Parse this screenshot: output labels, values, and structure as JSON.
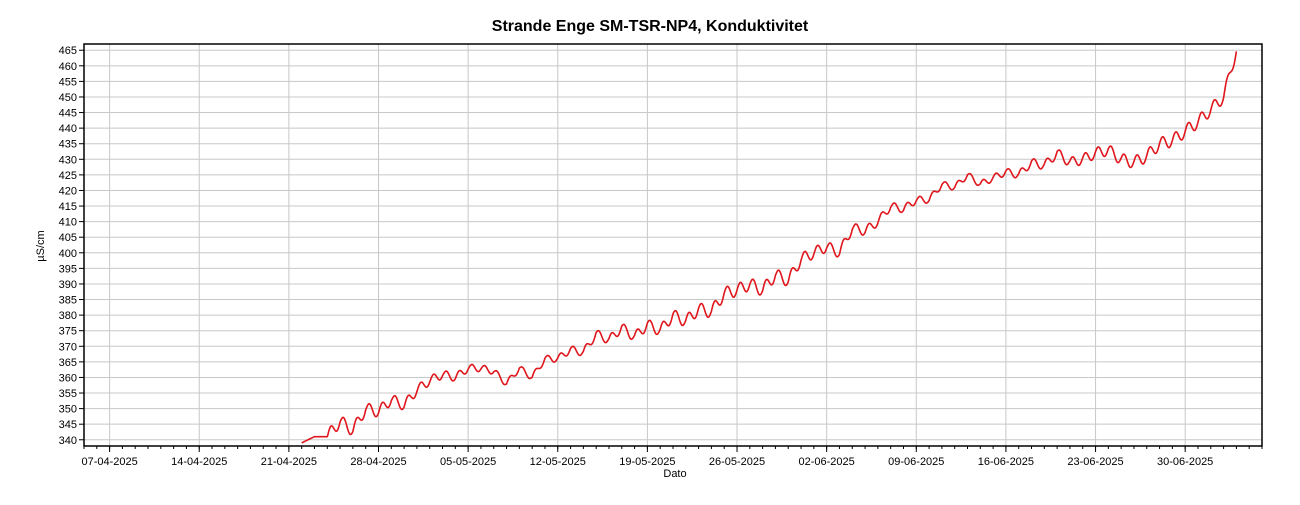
{
  "chart_data": {
    "type": "line",
    "title": "Strande Enge SM-TSR-NP4, Konduktivitet",
    "xlabel": "Dato",
    "ylabel": "µS/cm",
    "ylim": [
      338,
      467
    ],
    "yticks": [
      340,
      345,
      350,
      355,
      360,
      365,
      370,
      375,
      380,
      385,
      390,
      395,
      400,
      405,
      410,
      415,
      420,
      425,
      430,
      435,
      440,
      445,
      450,
      455,
      460,
      465
    ],
    "xlim": [
      "2025-04-05",
      "2025-07-06"
    ],
    "xticks": [
      "07-04-2025",
      "14-04-2025",
      "21-04-2025",
      "28-04-2025",
      "05-05-2025",
      "12-05-2025",
      "19-05-2025",
      "26-05-2025",
      "02-06-2025",
      "09-06-2025",
      "16-06-2025",
      "23-06-2025",
      "30-06-2025"
    ],
    "grid": true,
    "series": [
      {
        "color": "#e0161c",
        "points": [
          [
            "2025-04-22",
            339
          ],
          [
            "2025-04-23",
            341
          ],
          [
            "2025-04-24",
            341
          ],
          [
            "2025-04-25",
            346
          ],
          [
            "2025-04-26",
            343
          ],
          [
            "2025-04-27",
            350
          ],
          [
            "2025-04-28",
            349
          ],
          [
            "2025-04-29",
            353
          ],
          [
            "2025-04-30",
            351
          ],
          [
            "2025-05-01",
            356
          ],
          [
            "2025-05-02",
            359
          ],
          [
            "2025-05-03",
            361
          ],
          [
            "2025-05-04",
            360
          ],
          [
            "2025-05-05",
            363
          ],
          [
            "2025-05-06",
            363
          ],
          [
            "2025-05-07",
            362
          ],
          [
            "2025-05-08",
            358
          ],
          [
            "2025-05-09",
            363
          ],
          [
            "2025-05-10",
            360
          ],
          [
            "2025-05-11",
            366
          ],
          [
            "2025-05-12",
            366
          ],
          [
            "2025-05-13",
            369
          ],
          [
            "2025-05-14",
            368
          ],
          [
            "2025-05-15",
            374
          ],
          [
            "2025-05-16",
            372
          ],
          [
            "2025-05-17",
            376
          ],
          [
            "2025-05-18",
            373
          ],
          [
            "2025-05-19",
            377
          ],
          [
            "2025-05-20",
            375
          ],
          [
            "2025-05-21",
            380
          ],
          [
            "2025-05-22",
            378
          ],
          [
            "2025-05-23",
            382
          ],
          [
            "2025-05-24",
            381
          ],
          [
            "2025-05-25",
            387
          ],
          [
            "2025-05-26",
            388
          ],
          [
            "2025-05-27",
            390
          ],
          [
            "2025-05-28",
            388
          ],
          [
            "2025-05-29",
            393
          ],
          [
            "2025-05-30",
            391
          ],
          [
            "2025-05-31",
            398
          ],
          [
            "2025-06-01",
            400
          ],
          [
            "2025-06-02",
            402
          ],
          [
            "2025-06-03",
            400
          ],
          [
            "2025-06-04",
            408
          ],
          [
            "2025-06-05",
            407
          ],
          [
            "2025-06-06",
            410
          ],
          [
            "2025-06-07",
            415
          ],
          [
            "2025-06-08",
            414
          ],
          [
            "2025-06-09",
            417
          ],
          [
            "2025-06-10",
            417
          ],
          [
            "2025-06-11",
            422
          ],
          [
            "2025-06-12",
            421
          ],
          [
            "2025-06-13",
            425
          ],
          [
            "2025-06-14",
            422
          ],
          [
            "2025-06-15",
            424
          ],
          [
            "2025-06-16",
            426
          ],
          [
            "2025-06-17",
            425
          ],
          [
            "2025-06-18",
            429
          ],
          [
            "2025-06-19",
            428
          ],
          [
            "2025-06-20",
            432
          ],
          [
            "2025-06-21",
            429
          ],
          [
            "2025-06-22",
            430
          ],
          [
            "2025-06-23",
            432
          ],
          [
            "2025-06-24",
            433
          ],
          [
            "2025-06-25",
            430
          ],
          [
            "2025-06-26",
            429
          ],
          [
            "2025-06-27",
            431
          ],
          [
            "2025-06-28",
            435
          ],
          [
            "2025-06-29",
            436
          ],
          [
            "2025-06-30",
            439
          ],
          [
            "2025-07-01",
            442
          ],
          [
            "2025-07-02",
            446
          ],
          [
            "2025-07-03",
            450
          ],
          [
            "2025-07-04",
            465
          ]
        ]
      }
    ]
  }
}
